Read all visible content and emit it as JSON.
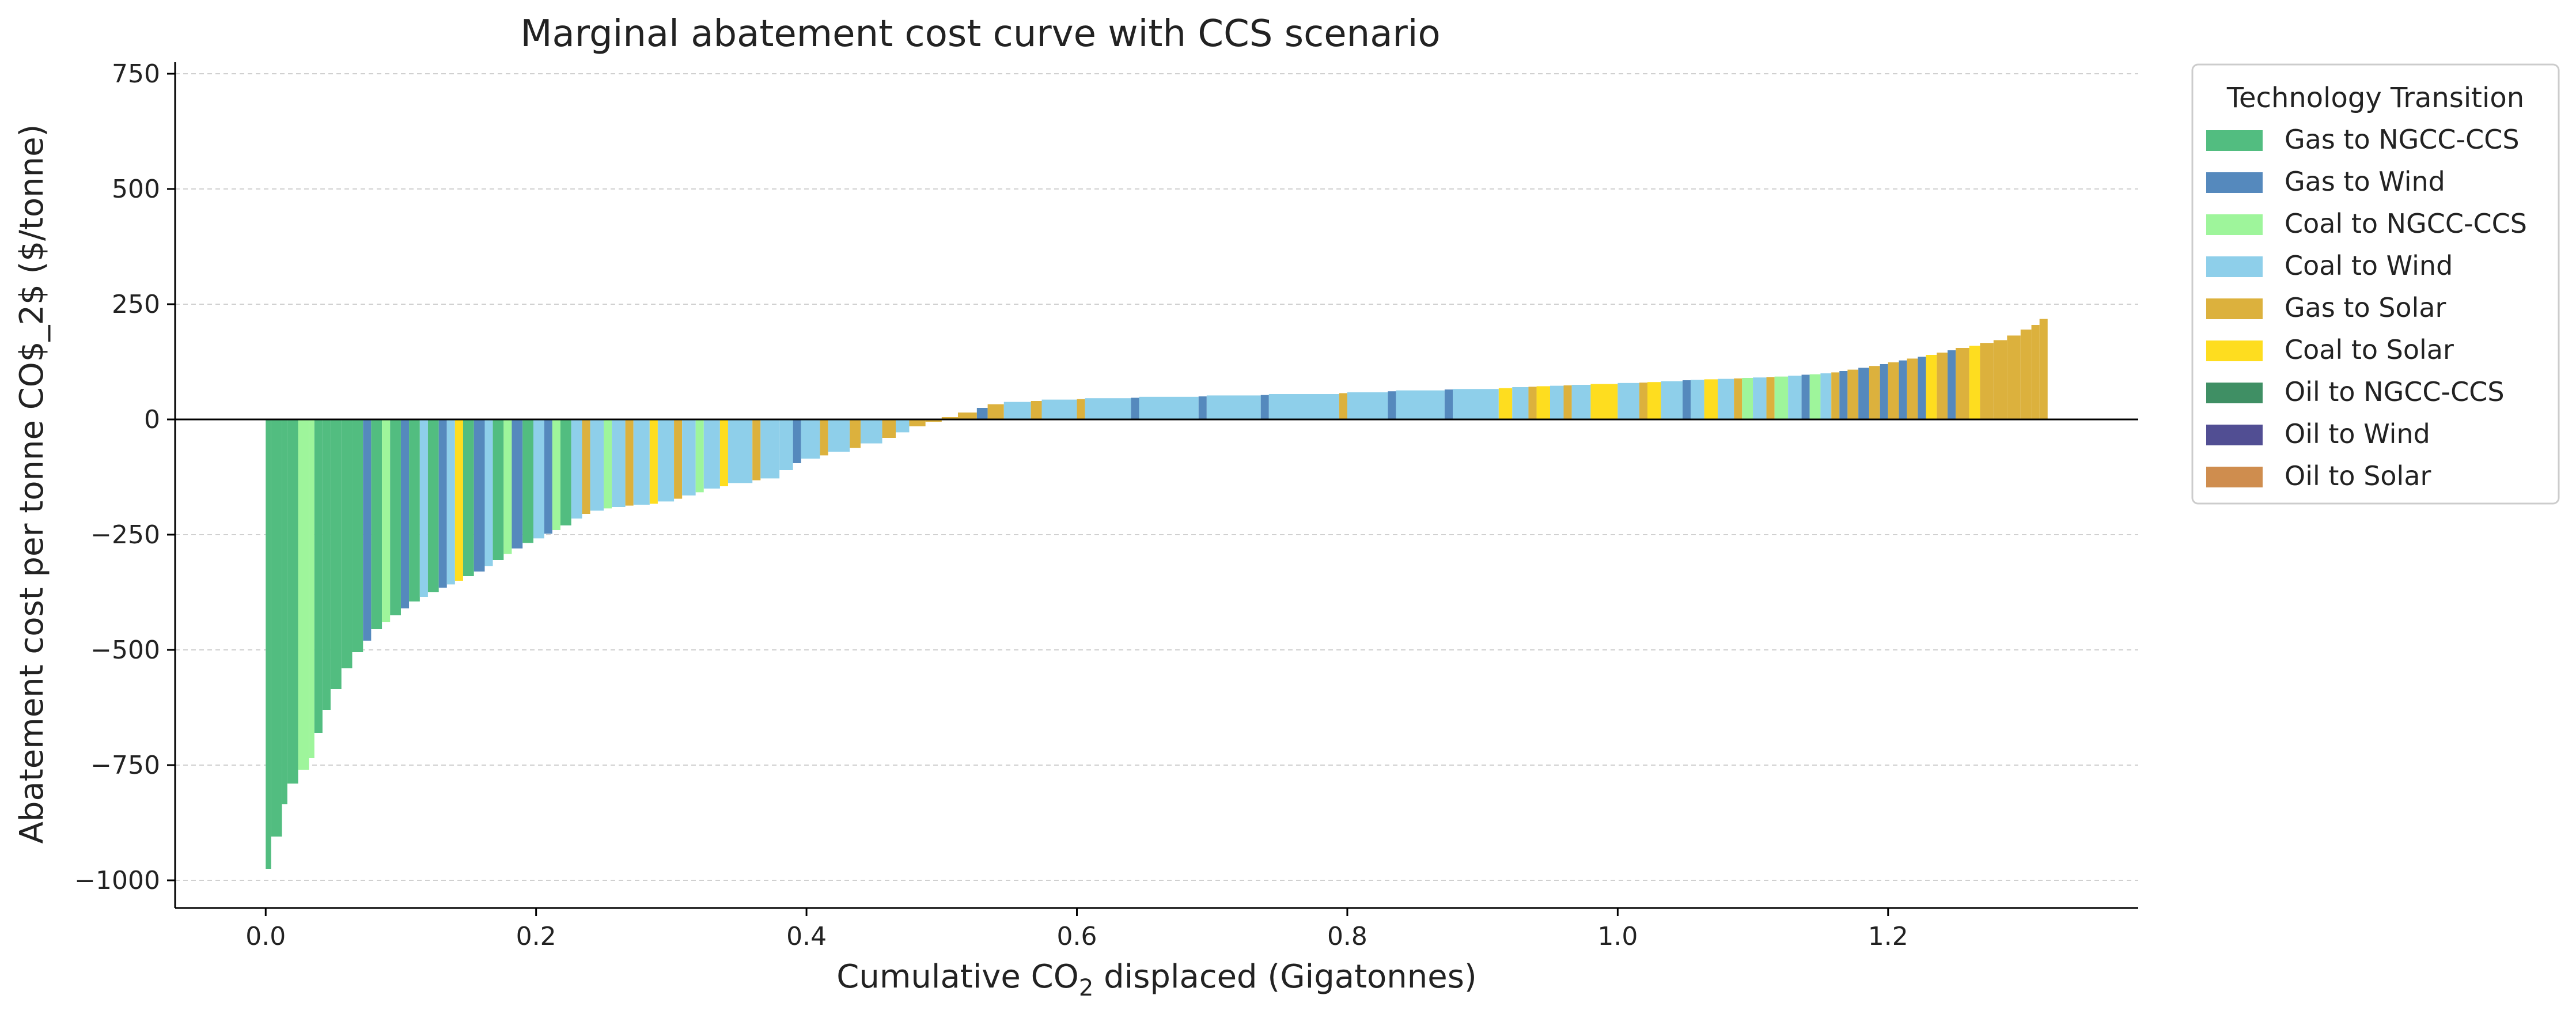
{
  "chart_data": {
    "type": "bar",
    "title": "Marginal abatement cost curve with CCS scenario",
    "xlabel_main": "Cumulative CO",
    "xlabel_sub": "2",
    "xlabel_rest": " displaced (Gigatonnes)",
    "ylabel": "Abatement cost per tonne CO$_2$ ($/tonne)",
    "xlim": [
      -0.067,
      1.385
    ],
    "ylim": [
      -1060,
      775
    ],
    "x_ticks": [
      0.0,
      0.2,
      0.4,
      0.6,
      0.8,
      1.0,
      1.2
    ],
    "x_tick_labels": [
      "0.0",
      "0.2",
      "0.4",
      "0.6",
      "0.8",
      "1.0",
      "1.2"
    ],
    "y_ticks": [
      -1000,
      -750,
      -500,
      -250,
      0,
      250,
      500,
      750
    ],
    "y_tick_labels": [
      "−1000",
      "−750",
      "−500",
      "−250",
      "0",
      "250",
      "500",
      "750"
    ],
    "grid": "y-dashed",
    "legend": {
      "title": "Technology Transition",
      "placement": "outside-top-right",
      "entries": [
        {
          "label": "Gas to NGCC-CCS",
          "color": "#52bd80"
        },
        {
          "label": "Gas to Wind",
          "color": "#5589bd"
        },
        {
          "label": "Coal to NGCC-CCS",
          "color": "#9ef59b"
        },
        {
          "label": "Coal to Wind",
          "color": "#8ecfea"
        },
        {
          "label": "Gas to Solar",
          "color": "#dcb13d"
        },
        {
          "label": "Coal to Solar",
          "color": "#fedd1f"
        },
        {
          "label": "Oil to NGCC-CCS",
          "color": "#3f8f64"
        },
        {
          "label": "Oil to Wind",
          "color": "#514e93"
        },
        {
          "label": "Oil to Solar",
          "color": "#cf8d4e"
        }
      ]
    },
    "bars": [
      {
        "series": "Gas to NGCC-CCS",
        "x0": 0.0,
        "x1": 0.004,
        "y": -975
      },
      {
        "series": "Gas to NGCC-CCS",
        "x0": 0.004,
        "x1": 0.012,
        "y": -905
      },
      {
        "series": "Gas to NGCC-CCS",
        "x0": 0.012,
        "x1": 0.016,
        "y": -835
      },
      {
        "series": "Gas to NGCC-CCS",
        "x0": 0.016,
        "x1": 0.024,
        "y": -790
      },
      {
        "series": "Coal to NGCC-CCS",
        "x0": 0.024,
        "x1": 0.032,
        "y": -760
      },
      {
        "series": "Coal to NGCC-CCS",
        "x0": 0.032,
        "x1": 0.036,
        "y": -735
      },
      {
        "series": "Gas to NGCC-CCS",
        "x0": 0.036,
        "x1": 0.042,
        "y": -680
      },
      {
        "series": "Gas to NGCC-CCS",
        "x0": 0.042,
        "x1": 0.048,
        "y": -630
      },
      {
        "series": "Gas to NGCC-CCS",
        "x0": 0.048,
        "x1": 0.056,
        "y": -585
      },
      {
        "series": "Gas to NGCC-CCS",
        "x0": 0.056,
        "x1": 0.064,
        "y": -540
      },
      {
        "series": "Gas to NGCC-CCS",
        "x0": 0.064,
        "x1": 0.072,
        "y": -505
      },
      {
        "series": "Gas to Wind",
        "x0": 0.072,
        "x1": 0.078,
        "y": -480
      },
      {
        "series": "Gas to NGCC-CCS",
        "x0": 0.078,
        "x1": 0.086,
        "y": -455
      },
      {
        "series": "Coal to NGCC-CCS",
        "x0": 0.086,
        "x1": 0.092,
        "y": -440
      },
      {
        "series": "Gas to NGCC-CCS",
        "x0": 0.092,
        "x1": 0.1,
        "y": -425
      },
      {
        "series": "Gas to Wind",
        "x0": 0.1,
        "x1": 0.106,
        "y": -410
      },
      {
        "series": "Gas to NGCC-CCS",
        "x0": 0.106,
        "x1": 0.114,
        "y": -395
      },
      {
        "series": "Coal to Wind",
        "x0": 0.114,
        "x1": 0.12,
        "y": -385
      },
      {
        "series": "Gas to NGCC-CCS",
        "x0": 0.12,
        "x1": 0.128,
        "y": -375
      },
      {
        "series": "Gas to Wind",
        "x0": 0.128,
        "x1": 0.134,
        "y": -365
      },
      {
        "series": "Coal to Wind",
        "x0": 0.134,
        "x1": 0.14,
        "y": -358
      },
      {
        "series": "Coal to Solar",
        "x0": 0.14,
        "x1": 0.146,
        "y": -350
      },
      {
        "series": "Gas to NGCC-CCS",
        "x0": 0.146,
        "x1": 0.154,
        "y": -340
      },
      {
        "series": "Gas to Wind",
        "x0": 0.154,
        "x1": 0.162,
        "y": -330
      },
      {
        "series": "Coal to Wind",
        "x0": 0.162,
        "x1": 0.168,
        "y": -318
      },
      {
        "series": "Gas to NGCC-CCS",
        "x0": 0.168,
        "x1": 0.176,
        "y": -305
      },
      {
        "series": "Coal to NGCC-CCS",
        "x0": 0.176,
        "x1": 0.182,
        "y": -292
      },
      {
        "series": "Gas to Wind",
        "x0": 0.182,
        "x1": 0.19,
        "y": -280
      },
      {
        "series": "Gas to NGCC-CCS",
        "x0": 0.19,
        "x1": 0.198,
        "y": -268
      },
      {
        "series": "Coal to Wind",
        "x0": 0.198,
        "x1": 0.206,
        "y": -258
      },
      {
        "series": "Gas to Wind",
        "x0": 0.206,
        "x1": 0.212,
        "y": -248
      },
      {
        "series": "Coal to NGCC-CCS",
        "x0": 0.212,
        "x1": 0.218,
        "y": -240
      },
      {
        "series": "Gas to NGCC-CCS",
        "x0": 0.218,
        "x1": 0.226,
        "y": -230
      },
      {
        "series": "Coal to Wind",
        "x0": 0.226,
        "x1": 0.234,
        "y": -215
      },
      {
        "series": "Gas to Solar",
        "x0": 0.234,
        "x1": 0.24,
        "y": -205
      },
      {
        "series": "Coal to Wind",
        "x0": 0.24,
        "x1": 0.25,
        "y": -198
      },
      {
        "series": "Coal to NGCC-CCS",
        "x0": 0.25,
        "x1": 0.256,
        "y": -193
      },
      {
        "series": "Coal to Wind",
        "x0": 0.256,
        "x1": 0.266,
        "y": -190
      },
      {
        "series": "Gas to Solar",
        "x0": 0.266,
        "x1": 0.272,
        "y": -187
      },
      {
        "series": "Coal to Wind",
        "x0": 0.272,
        "x1": 0.284,
        "y": -185
      },
      {
        "series": "Coal to Solar",
        "x0": 0.284,
        "x1": 0.29,
        "y": -183
      },
      {
        "series": "Coal to Wind",
        "x0": 0.29,
        "x1": 0.302,
        "y": -178
      },
      {
        "series": "Gas to Solar",
        "x0": 0.302,
        "x1": 0.308,
        "y": -172
      },
      {
        "series": "Coal to Wind",
        "x0": 0.308,
        "x1": 0.318,
        "y": -165
      },
      {
        "series": "Coal to NGCC-CCS",
        "x0": 0.318,
        "x1": 0.324,
        "y": -158
      },
      {
        "series": "Coal to Wind",
        "x0": 0.324,
        "x1": 0.336,
        "y": -150
      },
      {
        "series": "Coal to Solar",
        "x0": 0.336,
        "x1": 0.342,
        "y": -145
      },
      {
        "series": "Coal to Wind",
        "x0": 0.342,
        "x1": 0.36,
        "y": -138
      },
      {
        "series": "Gas to Solar",
        "x0": 0.36,
        "x1": 0.366,
        "y": -132
      },
      {
        "series": "Coal to Wind",
        "x0": 0.366,
        "x1": 0.38,
        "y": -128
      },
      {
        "series": "Coal to Wind",
        "x0": 0.38,
        "x1": 0.39,
        "y": -110
      },
      {
        "series": "Gas to Wind",
        "x0": 0.39,
        "x1": 0.396,
        "y": -95
      },
      {
        "series": "Coal to Wind",
        "x0": 0.396,
        "x1": 0.41,
        "y": -85
      },
      {
        "series": "Gas to Solar",
        "x0": 0.41,
        "x1": 0.416,
        "y": -78
      },
      {
        "series": "Coal to Wind",
        "x0": 0.416,
        "x1": 0.432,
        "y": -70
      },
      {
        "series": "Gas to Solar",
        "x0": 0.432,
        "x1": 0.44,
        "y": -62
      },
      {
        "series": "Coal to Wind",
        "x0": 0.44,
        "x1": 0.456,
        "y": -52
      },
      {
        "series": "Gas to Solar",
        "x0": 0.456,
        "x1": 0.466,
        "y": -40
      },
      {
        "series": "Coal to Wind",
        "x0": 0.466,
        "x1": 0.476,
        "y": -28
      },
      {
        "series": "Gas to Solar",
        "x0": 0.476,
        "x1": 0.488,
        "y": -15
      },
      {
        "series": "Gas to Solar",
        "x0": 0.488,
        "x1": 0.5,
        "y": -5
      },
      {
        "series": "Gas to Solar",
        "x0": 0.5,
        "x1": 0.512,
        "y": 5
      },
      {
        "series": "Gas to Solar",
        "x0": 0.512,
        "x1": 0.526,
        "y": 15
      },
      {
        "series": "Gas to Wind",
        "x0": 0.526,
        "x1": 0.534,
        "y": 25
      },
      {
        "series": "Gas to Solar",
        "x0": 0.534,
        "x1": 0.546,
        "y": 33
      },
      {
        "series": "Coal to Wind",
        "x0": 0.546,
        "x1": 0.566,
        "y": 38
      },
      {
        "series": "Gas to Solar",
        "x0": 0.566,
        "x1": 0.574,
        "y": 40
      },
      {
        "series": "Coal to Wind",
        "x0": 0.574,
        "x1": 0.6,
        "y": 43
      },
      {
        "series": "Gas to Solar",
        "x0": 0.6,
        "x1": 0.606,
        "y": 44
      },
      {
        "series": "Coal to Wind",
        "x0": 0.606,
        "x1": 0.64,
        "y": 46
      },
      {
        "series": "Gas to Wind",
        "x0": 0.64,
        "x1": 0.646,
        "y": 47
      },
      {
        "series": "Coal to Wind",
        "x0": 0.646,
        "x1": 0.69,
        "y": 49
      },
      {
        "series": "Gas to Wind",
        "x0": 0.69,
        "x1": 0.696,
        "y": 50
      },
      {
        "series": "Coal to Wind",
        "x0": 0.696,
        "x1": 0.736,
        "y": 52
      },
      {
        "series": "Gas to Wind",
        "x0": 0.736,
        "x1": 0.742,
        "y": 53
      },
      {
        "series": "Coal to Wind",
        "x0": 0.742,
        "x1": 0.794,
        "y": 55
      },
      {
        "series": "Gas to Solar",
        "x0": 0.794,
        "x1": 0.8,
        "y": 57
      },
      {
        "series": "Coal to Wind",
        "x0": 0.8,
        "x1": 0.83,
        "y": 59
      },
      {
        "series": "Gas to Wind",
        "x0": 0.83,
        "x1": 0.836,
        "y": 61
      },
      {
        "series": "Coal to Wind",
        "x0": 0.836,
        "x1": 0.872,
        "y": 63
      },
      {
        "series": "Gas to Wind",
        "x0": 0.872,
        "x1": 0.878,
        "y": 65
      },
      {
        "series": "Coal to Wind",
        "x0": 0.878,
        "x1": 0.912,
        "y": 66
      },
      {
        "series": "Coal to Solar",
        "x0": 0.912,
        "x1": 0.922,
        "y": 68
      },
      {
        "series": "Coal to Wind",
        "x0": 0.922,
        "x1": 0.934,
        "y": 70
      },
      {
        "series": "Gas to Solar",
        "x0": 0.934,
        "x1": 0.94,
        "y": 71
      },
      {
        "series": "Coal to Solar",
        "x0": 0.94,
        "x1": 0.95,
        "y": 72
      },
      {
        "series": "Coal to Wind",
        "x0": 0.95,
        "x1": 0.96,
        "y": 73
      },
      {
        "series": "Gas to Solar",
        "x0": 0.96,
        "x1": 0.966,
        "y": 74
      },
      {
        "series": "Coal to Wind",
        "x0": 0.966,
        "x1": 0.98,
        "y": 75
      },
      {
        "series": "Coal to Solar",
        "x0": 0.98,
        "x1": 1.0,
        "y": 77
      },
      {
        "series": "Coal to Wind",
        "x0": 1.0,
        "x1": 1.016,
        "y": 79
      },
      {
        "series": "Gas to Solar",
        "x0": 1.016,
        "x1": 1.022,
        "y": 80
      },
      {
        "series": "Coal to Solar",
        "x0": 1.022,
        "x1": 1.032,
        "y": 81
      },
      {
        "series": "Coal to Wind",
        "x0": 1.032,
        "x1": 1.048,
        "y": 83
      },
      {
        "series": "Gas to Wind",
        "x0": 1.048,
        "x1": 1.054,
        "y": 85
      },
      {
        "series": "Coal to Wind",
        "x0": 1.054,
        "x1": 1.064,
        "y": 86
      },
      {
        "series": "Coal to Solar",
        "x0": 1.064,
        "x1": 1.074,
        "y": 87
      },
      {
        "series": "Coal to Wind",
        "x0": 1.074,
        "x1": 1.086,
        "y": 88
      },
      {
        "series": "Gas to Solar",
        "x0": 1.086,
        "x1": 1.092,
        "y": 89
      },
      {
        "series": "Coal to NGCC-CCS",
        "x0": 1.092,
        "x1": 1.1,
        "y": 90
      },
      {
        "series": "Coal to Wind",
        "x0": 1.1,
        "x1": 1.11,
        "y": 91
      },
      {
        "series": "Gas to Solar",
        "x0": 1.11,
        "x1": 1.116,
        "y": 92
      },
      {
        "series": "Coal to NGCC-CCS",
        "x0": 1.116,
        "x1": 1.126,
        "y": 93
      },
      {
        "series": "Coal to Wind",
        "x0": 1.126,
        "x1": 1.136,
        "y": 95
      },
      {
        "series": "Gas to Wind",
        "x0": 1.136,
        "x1": 1.142,
        "y": 97
      },
      {
        "series": "Coal to NGCC-CCS",
        "x0": 1.142,
        "x1": 1.15,
        "y": 98
      },
      {
        "series": "Coal to Wind",
        "x0": 1.15,
        "x1": 1.158,
        "y": 100
      },
      {
        "series": "Gas to Solar",
        "x0": 1.158,
        "x1": 1.164,
        "y": 102
      },
      {
        "series": "Gas to Wind",
        "x0": 1.164,
        "x1": 1.17,
        "y": 105
      },
      {
        "series": "Gas to Solar",
        "x0": 1.17,
        "x1": 1.178,
        "y": 108
      },
      {
        "series": "Gas to Wind",
        "x0": 1.178,
        "x1": 1.186,
        "y": 112
      },
      {
        "series": "Gas to Solar",
        "x0": 1.186,
        "x1": 1.194,
        "y": 116
      },
      {
        "series": "Gas to Wind",
        "x0": 1.194,
        "x1": 1.2,
        "y": 120
      },
      {
        "series": "Gas to Solar",
        "x0": 1.2,
        "x1": 1.208,
        "y": 124
      },
      {
        "series": "Gas to Wind",
        "x0": 1.208,
        "x1": 1.214,
        "y": 128
      },
      {
        "series": "Gas to Solar",
        "x0": 1.214,
        "x1": 1.222,
        "y": 132
      },
      {
        "series": "Gas to Wind",
        "x0": 1.222,
        "x1": 1.228,
        "y": 136
      },
      {
        "series": "Coal to Solar",
        "x0": 1.228,
        "x1": 1.236,
        "y": 140
      },
      {
        "series": "Gas to Solar",
        "x0": 1.236,
        "x1": 1.244,
        "y": 145
      },
      {
        "series": "Gas to Wind",
        "x0": 1.244,
        "x1": 1.25,
        "y": 150
      },
      {
        "series": "Gas to Solar",
        "x0": 1.25,
        "x1": 1.26,
        "y": 155
      },
      {
        "series": "Coal to Solar",
        "x0": 1.26,
        "x1": 1.268,
        "y": 160
      },
      {
        "series": "Gas to Solar",
        "x0": 1.268,
        "x1": 1.278,
        "y": 166
      },
      {
        "series": "Gas to Solar",
        "x0": 1.278,
        "x1": 1.288,
        "y": 172
      },
      {
        "series": "Gas to Solar",
        "x0": 1.288,
        "x1": 1.298,
        "y": 182
      },
      {
        "series": "Gas to Solar",
        "x0": 1.298,
        "x1": 1.306,
        "y": 195
      },
      {
        "series": "Gas to Solar",
        "x0": 1.306,
        "x1": 1.312,
        "y": 205
      },
      {
        "series": "Gas to Solar",
        "x0": 1.312,
        "x1": 1.318,
        "y": 218
      }
    ]
  }
}
